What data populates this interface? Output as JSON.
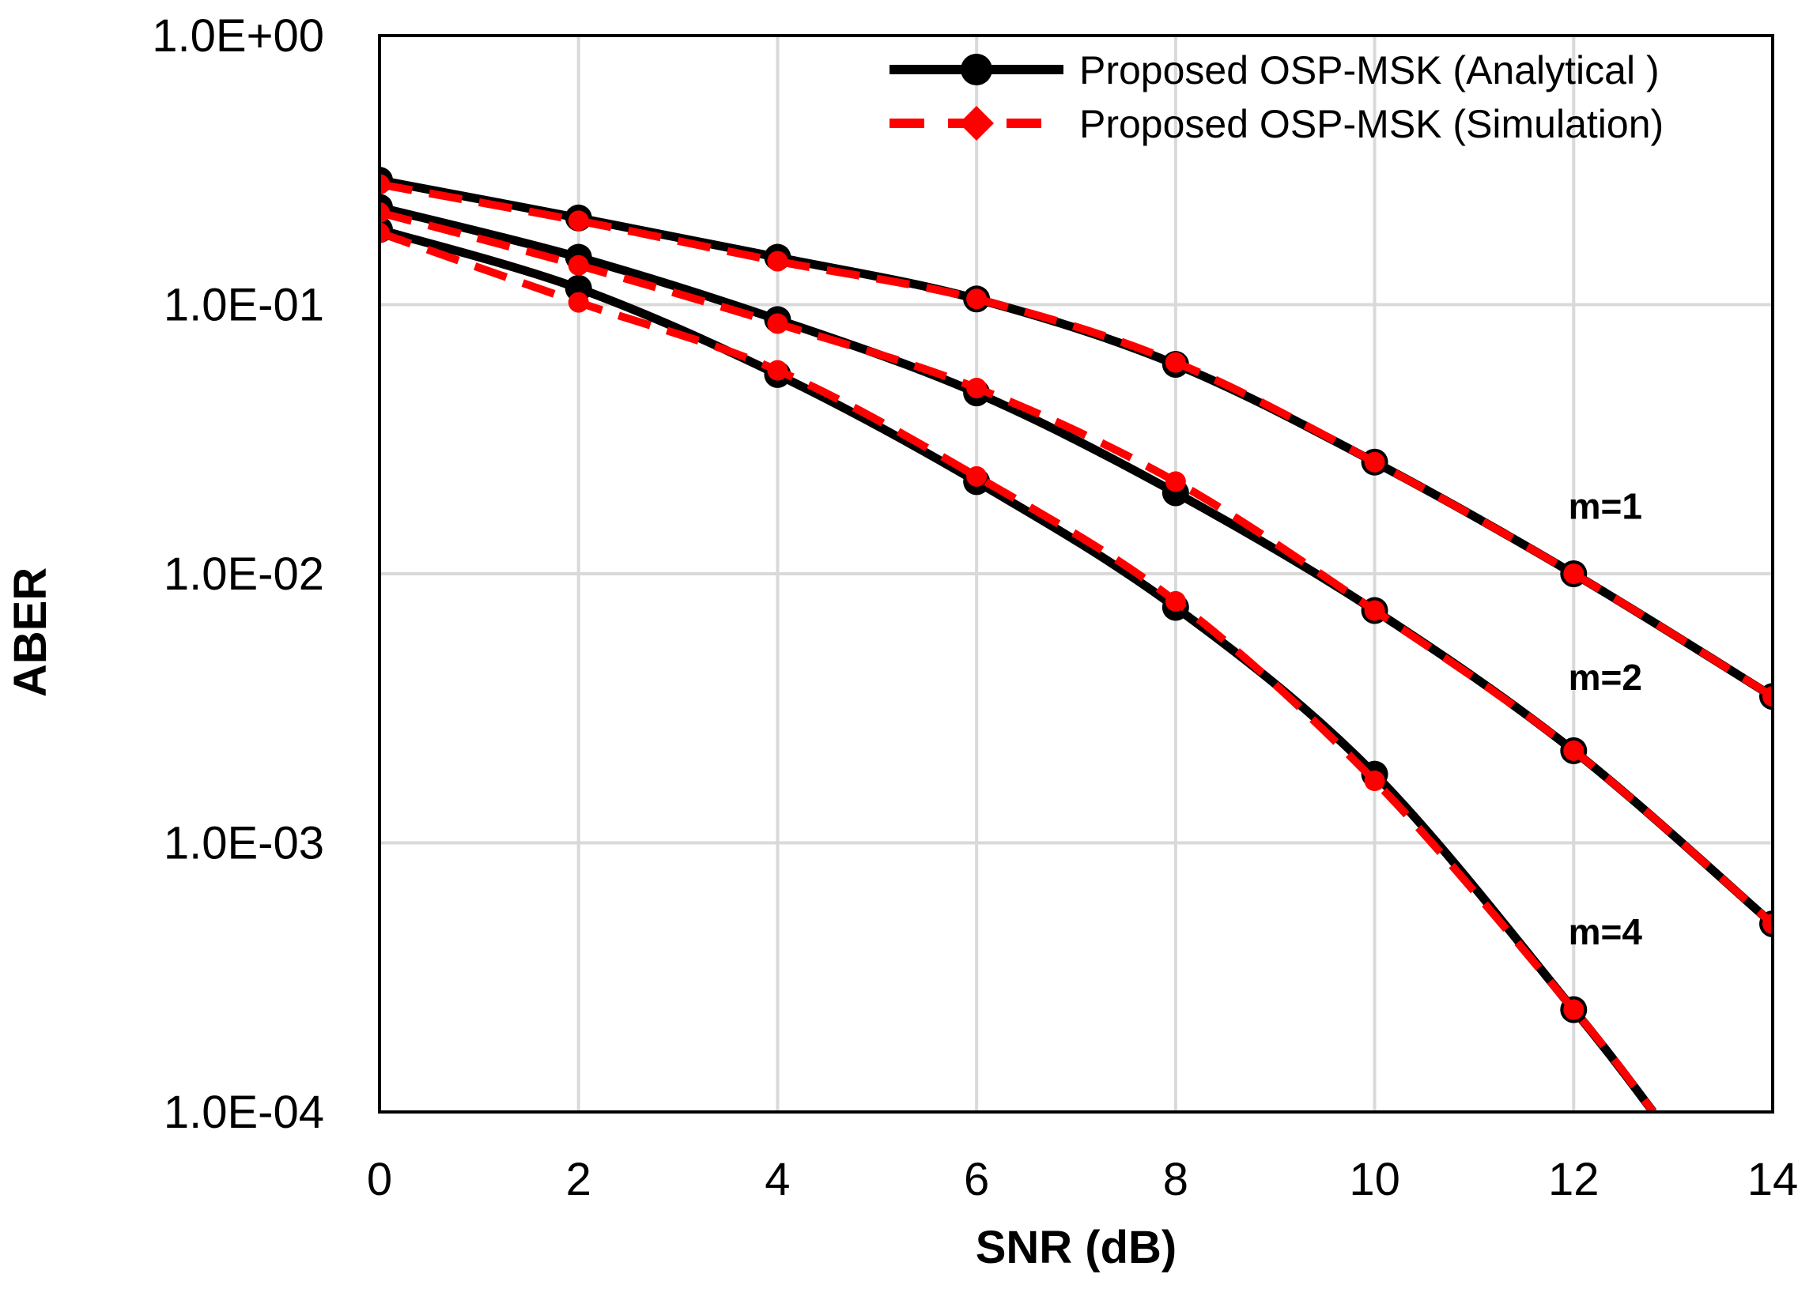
{
  "chart_data": {
    "type": "line",
    "title": "",
    "xlabel": "SNR (dB)",
    "ylabel": "ABER",
    "yscale": "log",
    "xlim": [
      0,
      14
    ],
    "ylim": [
      0.0001,
      1
    ],
    "grid": true,
    "x_ticks": [
      "0",
      "2",
      "4",
      "6",
      "8",
      "10",
      "12",
      "14"
    ],
    "y_ticks": [
      "1.0E+00",
      "1.0E-01",
      "1.0E-02",
      "1.0E-03",
      "1.0E-04"
    ],
    "legend_position": "top-right",
    "legend": [
      {
        "label": "Proposed OSP-MSK (Analytical )",
        "color": "#000000",
        "marker": "circle",
        "style": "solid"
      },
      {
        "label": "Proposed OSP-MSK (Simulation)",
        "color": "#ff0000",
        "marker": "diamond",
        "style": "dashed"
      }
    ],
    "series": [
      {
        "name": "Analytical m=1",
        "kind": "analytical",
        "m": 1,
        "x": [
          0,
          2,
          4,
          6,
          8,
          10,
          12,
          14
        ],
        "values": [
          0.29,
          0.21,
          0.15,
          0.105,
          0.06,
          0.026,
          0.01,
          0.0035
        ]
      },
      {
        "name": "Analytical m=2",
        "kind": "analytical",
        "m": 2,
        "x": [
          0,
          2,
          4,
          6,
          8,
          10,
          12,
          14
        ],
        "values": [
          0.23,
          0.15,
          0.088,
          0.047,
          0.02,
          0.0073,
          0.0022,
          0.0005
        ]
      },
      {
        "name": "Analytical m=4",
        "kind": "analytical",
        "m": 4,
        "x": [
          0,
          2,
          4,
          6,
          8,
          10,
          12,
          12.8
        ],
        "values": [
          0.19,
          0.115,
          0.055,
          0.022,
          0.0075,
          0.0018,
          0.00024,
          0.0001
        ]
      },
      {
        "name": "Simulation m=1",
        "kind": "simulation",
        "m": 1,
        "x": [
          0,
          2,
          4,
          6,
          8,
          10,
          12,
          14
        ],
        "values": [
          0.28,
          0.205,
          0.145,
          0.105,
          0.061,
          0.026,
          0.01,
          0.0035
        ]
      },
      {
        "name": "Simulation m=2",
        "kind": "simulation",
        "m": 2,
        "x": [
          0,
          2,
          4,
          6,
          8,
          10,
          12,
          14
        ],
        "values": [
          0.22,
          0.14,
          0.085,
          0.049,
          0.022,
          0.0073,
          0.0022,
          0.0005
        ]
      },
      {
        "name": "Simulation m=4",
        "kind": "simulation",
        "m": 4,
        "x": [
          0,
          2,
          4,
          6,
          8,
          10,
          12,
          12.8
        ],
        "values": [
          0.185,
          0.102,
          0.057,
          0.023,
          0.0079,
          0.0017,
          0.00024,
          0.0001
        ]
      }
    ],
    "annotations": [
      {
        "text": "m=1",
        "x": 12,
        "y": 0.016
      },
      {
        "text": "m=2",
        "x": 12,
        "y": 0.0037
      },
      {
        "text": "m=4",
        "x": 12,
        "y": 0.00042
      }
    ]
  }
}
